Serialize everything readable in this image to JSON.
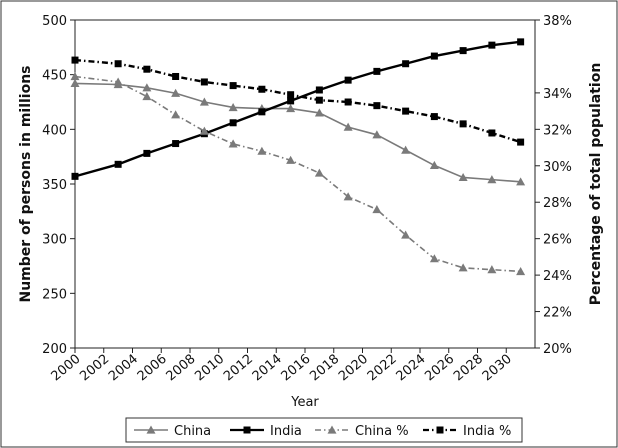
{
  "chart_data": {
    "type": "line",
    "xlabel": "Year",
    "ylabel_left": "Number of persons in millions",
    "ylabel_right": "Percentage of total population",
    "ylim_left": [
      200,
      500
    ],
    "ylim_right": [
      20,
      38
    ],
    "left_ticks": [
      "200",
      "250",
      "300",
      "350",
      "400",
      "450",
      "500"
    ],
    "right_ticks": [
      "20%",
      "22%",
      "24%",
      "26%",
      "28%",
      "30%",
      "32%",
      "34%",
      "38%"
    ],
    "x_ticks": [
      "2000",
      "2002",
      "2004",
      "2006",
      "2008",
      "2010",
      "2012",
      "2014",
      "2016",
      "2018",
      "2020",
      "2022",
      "2024",
      "2026",
      "2028",
      "2030"
    ],
    "x": [
      2000,
      2003,
      2005,
      2007,
      2009,
      2011,
      2013,
      2015,
      2017,
      2019,
      2021,
      2023,
      2025,
      2027,
      2029,
      2031
    ],
    "series": [
      {
        "name": "China",
        "axis": "left",
        "color": "#7a7a7a",
        "marker": "triangle",
        "dash": "solid",
        "values": [
          442,
          441,
          438,
          433,
          425,
          420,
          419,
          419,
          415,
          402,
          395,
          381,
          367,
          356,
          354,
          352
        ]
      },
      {
        "name": "India",
        "axis": "left",
        "color": "#000000",
        "marker": "square",
        "dash": "solid",
        "values": [
          357,
          368,
          378,
          387,
          396,
          406,
          416,
          426,
          436,
          445,
          453,
          460,
          467,
          472,
          477,
          480
        ]
      },
      {
        "name": "China %",
        "axis": "right",
        "color": "#7a7a7a",
        "marker": "triangle",
        "dash": "dashdot",
        "values": [
          34.9,
          34.6,
          33.8,
          32.8,
          31.9,
          31.2,
          30.8,
          30.3,
          29.6,
          28.3,
          27.6,
          26.2,
          24.9,
          24.4,
          24.3,
          24.2
        ]
      },
      {
        "name": "India %",
        "axis": "right",
        "color": "#000000",
        "marker": "square",
        "dash": "dashdot",
        "values": [
          35.8,
          35.6,
          35.3,
          34.9,
          34.6,
          34.4,
          34.2,
          33.9,
          33.6,
          33.5,
          33.3,
          33.0,
          32.7,
          32.3,
          31.8,
          31.3
        ]
      }
    ],
    "legend_position": "bottom",
    "grid": false
  }
}
